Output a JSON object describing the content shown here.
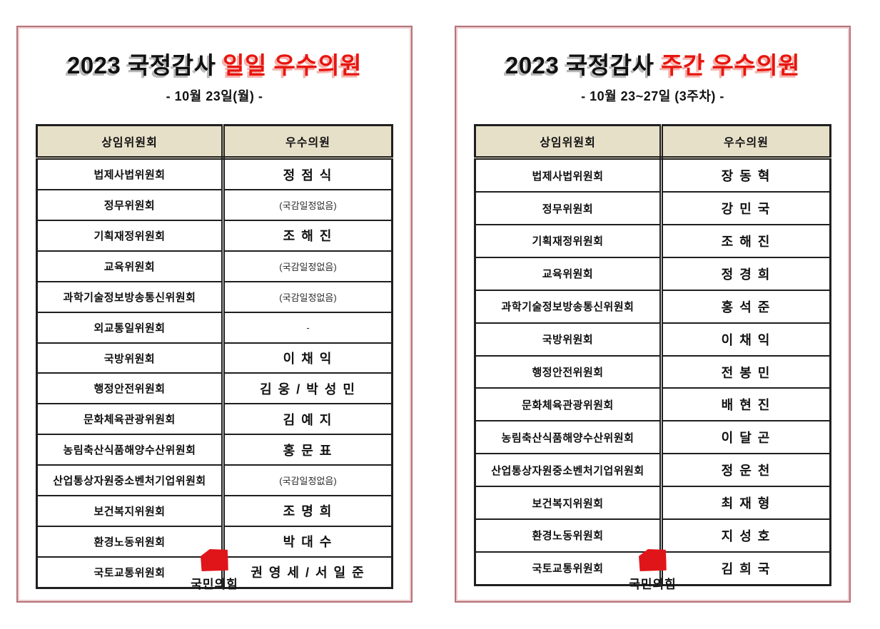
{
  "colors": {
    "title_red": "#e8150f",
    "title_shadow_gray": "#b8b8b8",
    "title_shadow_pink": "#f5b3ad",
    "card_border_outer": "#b5737b",
    "card_border_inner": "#ecc9cc",
    "table_header_bg": "#e7e0c8",
    "table_border": "#1f1f1f",
    "logo_red": "#e0151a"
  },
  "cards": [
    {
      "title_black": "2023 국정감사",
      "title_red": "일일 우수의원",
      "subtitle": "- 10월 23일(월) -",
      "table": {
        "headers": [
          "상임위원회",
          "우수의원"
        ],
        "rows": [
          {
            "committee": "법제사법위원회",
            "member": "정 점 식",
            "muted": false
          },
          {
            "committee": "정무위원회",
            "member": "(국감일정없음)",
            "muted": true
          },
          {
            "committee": "기획재정위원회",
            "member": "조 해 진",
            "muted": false
          },
          {
            "committee": "교육위원회",
            "member": "(국감일정없음)",
            "muted": true
          },
          {
            "committee": "과학기술정보방송통신위원회",
            "member": "(국감일정없음)",
            "muted": true
          },
          {
            "committee": "외교통일위원회",
            "member": "-",
            "muted": true
          },
          {
            "committee": "국방위원회",
            "member": "이 채 익",
            "muted": false
          },
          {
            "committee": "행정안전위원회",
            "member": "김 웅 / 박 성 민",
            "muted": false
          },
          {
            "committee": "문화체육관광위원회",
            "member": "김 예 지",
            "muted": false
          },
          {
            "committee": "농림축산식품해양수산위원회",
            "member": "홍 문 표",
            "muted": false
          },
          {
            "committee": "산업통상자원중소벤처기업위원회",
            "member": "(국감일정없음)",
            "muted": true
          },
          {
            "committee": "보건복지위원회",
            "member": "조 명 희",
            "muted": false
          },
          {
            "committee": "환경노동위원회",
            "member": "박 대 수",
            "muted": false
          },
          {
            "committee": "국토교통위원회",
            "member": "권 영 세 / 서 일 준",
            "muted": false
          }
        ]
      },
      "logo_text": "국민의힘"
    },
    {
      "title_black": "2023 국정감사",
      "title_red": "주간 우수의원",
      "subtitle": "- 10월 23~27일 (3주차) -",
      "table": {
        "headers": [
          "상임위원회",
          "우수의원"
        ],
        "rows": [
          {
            "committee": "법제사법위원회",
            "member": "장 동 혁",
            "muted": false
          },
          {
            "committee": "정무위원회",
            "member": "강 민 국",
            "muted": false
          },
          {
            "committee": "기획재정위원회",
            "member": "조 해 진",
            "muted": false
          },
          {
            "committee": "교육위원회",
            "member": "정 경 희",
            "muted": false
          },
          {
            "committee": "과학기술정보방송통신위원회",
            "member": "홍 석 준",
            "muted": false
          },
          {
            "committee": "국방위원회",
            "member": "이 채 익",
            "muted": false
          },
          {
            "committee": "행정안전위원회",
            "member": "전 봉 민",
            "muted": false
          },
          {
            "committee": "문화체육관광위원회",
            "member": "배 현 진",
            "muted": false
          },
          {
            "committee": "농림축산식품해양수산위원회",
            "member": "이 달 곤",
            "muted": false
          },
          {
            "committee": "산업통상자원중소벤처기업위원회",
            "member": "정 운 천",
            "muted": false
          },
          {
            "committee": "보건복지위원회",
            "member": "최 재 형",
            "muted": false
          },
          {
            "committee": "환경노동위원회",
            "member": "지 성 호",
            "muted": false
          },
          {
            "committee": "국토교통위원회",
            "member": "김 희 국",
            "muted": false
          }
        ]
      },
      "logo_text": "국민의힘"
    }
  ]
}
